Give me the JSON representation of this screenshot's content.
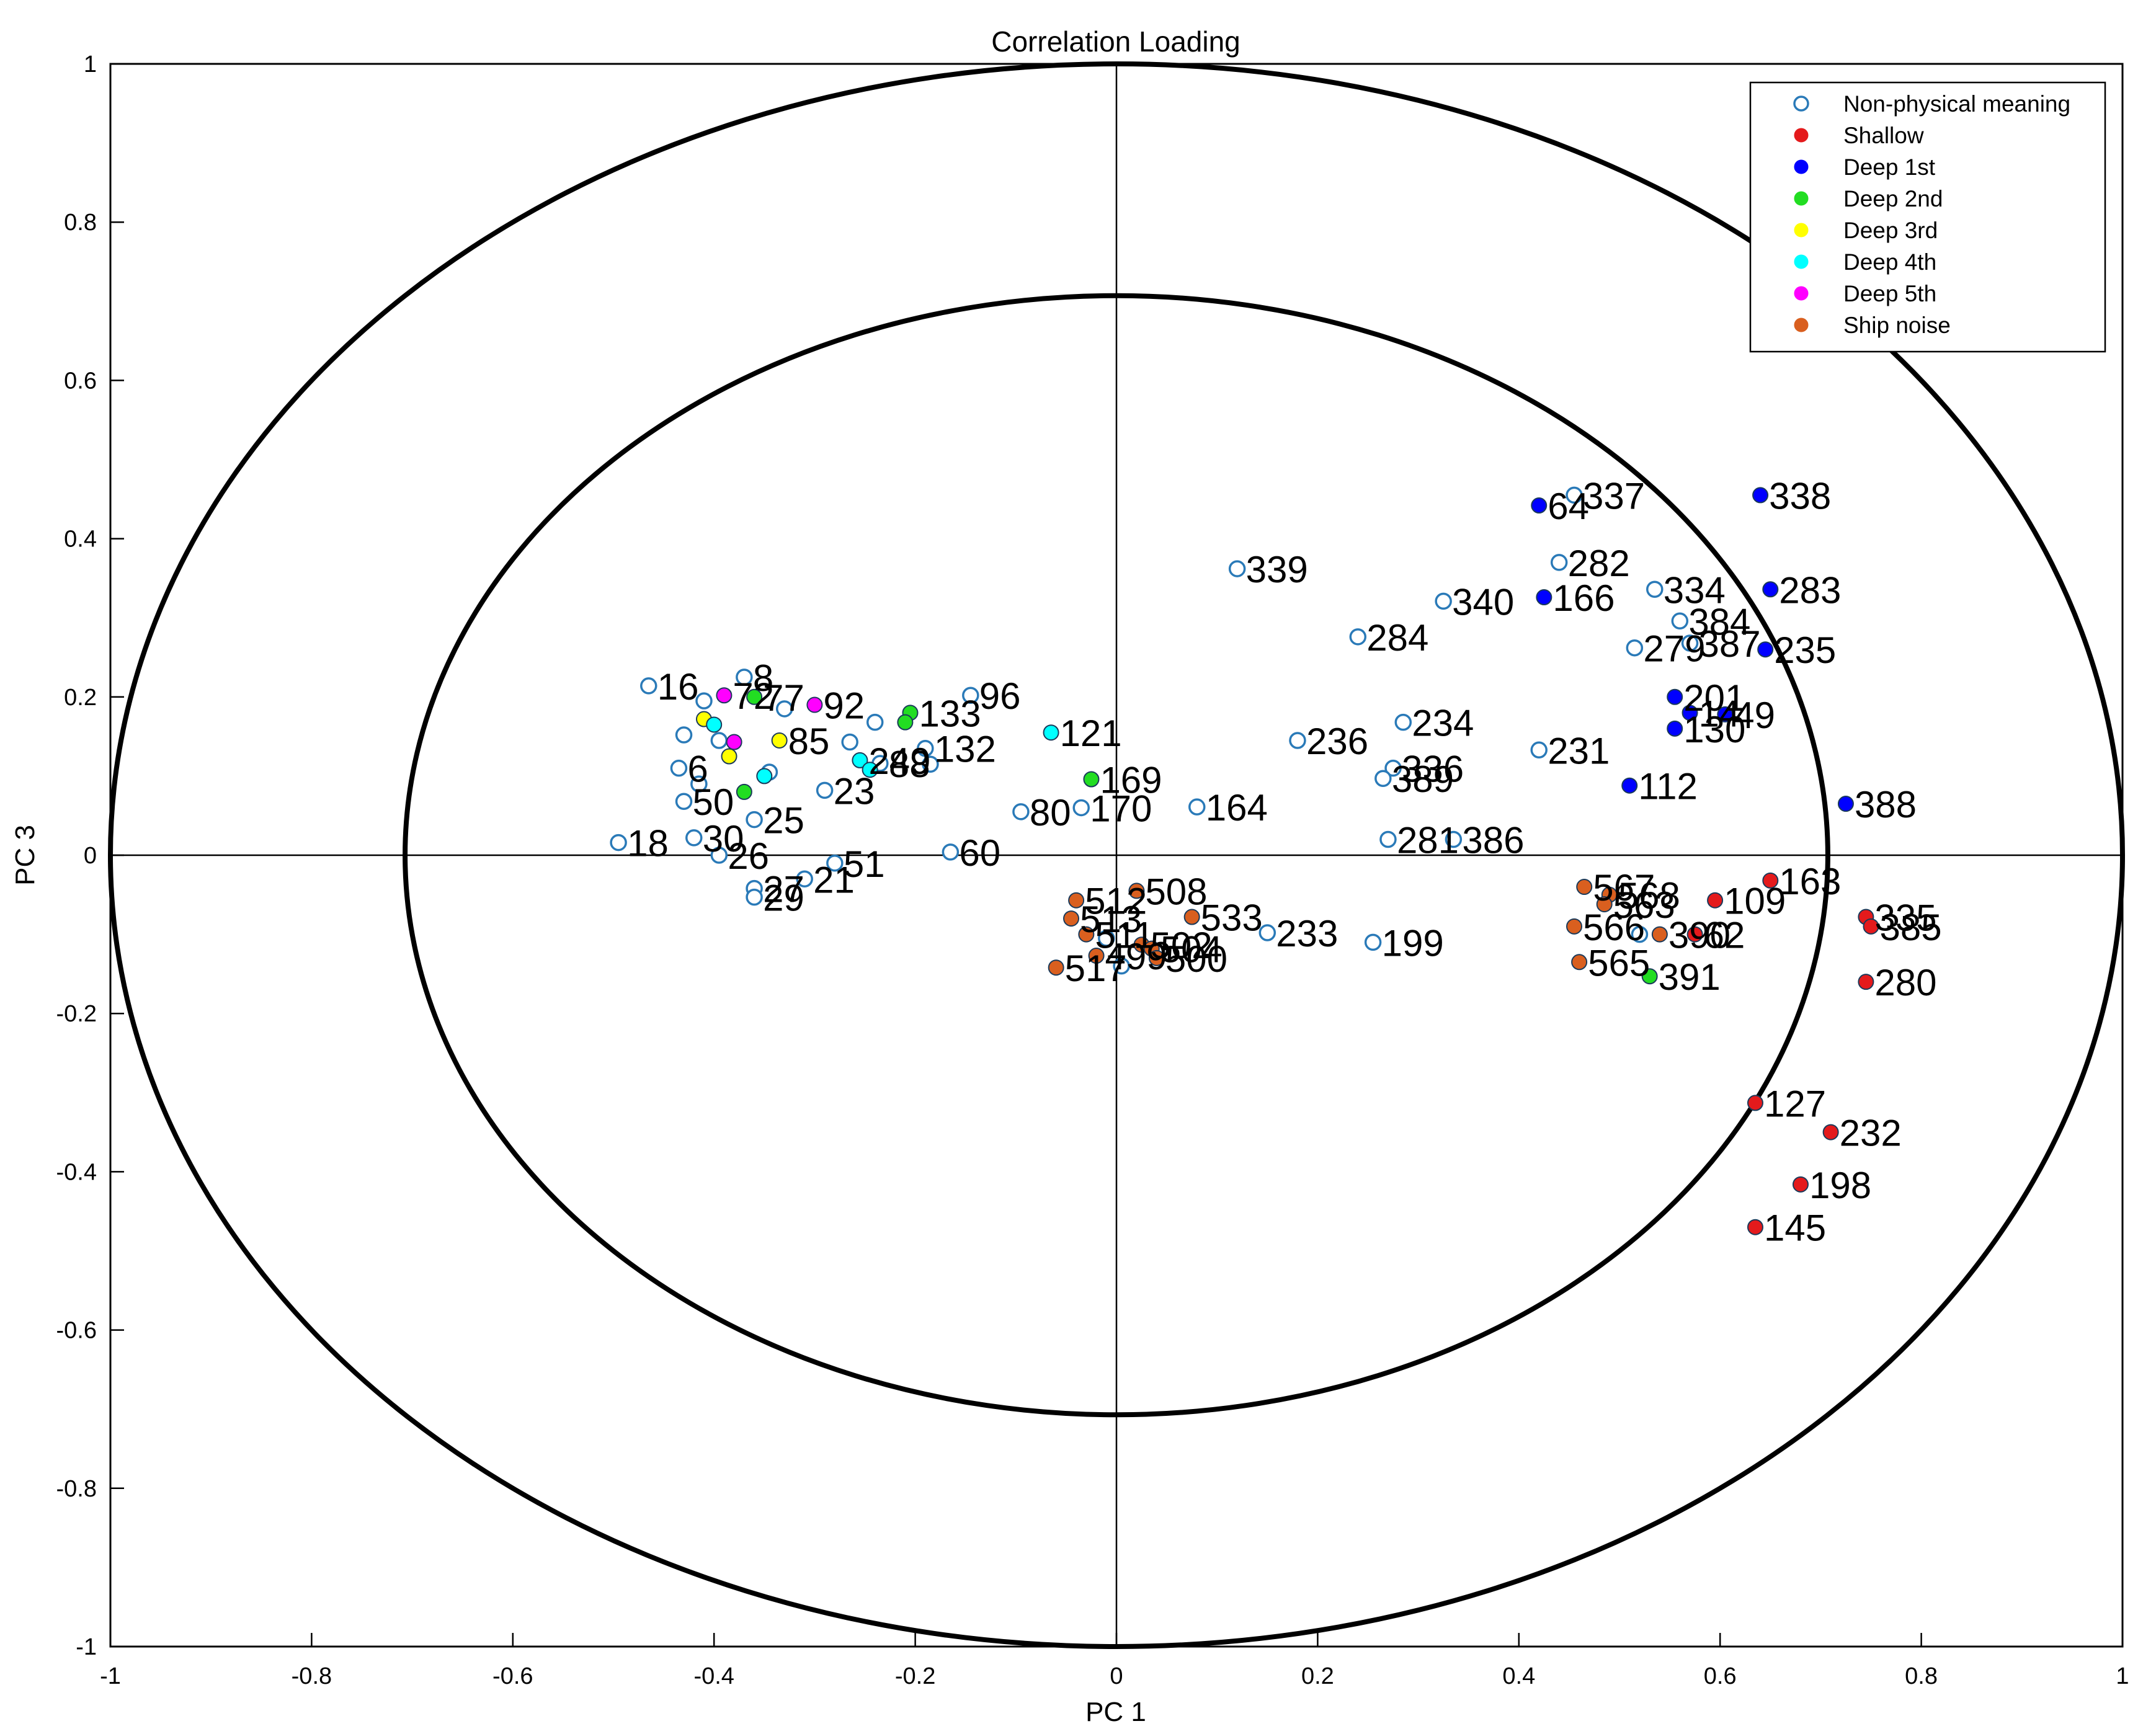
{
  "chart_data": {
    "type": "scatter",
    "title": "Correlation Loading",
    "xlabel": "PC 1",
    "ylabel": "PC 3",
    "xlim": [
      -1,
      1
    ],
    "ylim": [
      -1,
      1
    ],
    "x_ticks": [
      "-1",
      "-0.8",
      "-0.6",
      "-0.4",
      "-0.2",
      "0",
      "0.2",
      "0.4",
      "0.6",
      "0.8",
      "1"
    ],
    "y_ticks": [
      "1",
      "0.8",
      "0.6",
      "0.4",
      "0.2",
      "0",
      "-0.2",
      "-0.4",
      "-0.6",
      "-0.8",
      "-1"
    ],
    "x_tick_values": [
      -1,
      -0.8,
      -0.6,
      -0.4,
      -0.2,
      0,
      0.2,
      0.4,
      0.6,
      0.8,
      1
    ],
    "y_tick_values": [
      1,
      0.8,
      0.6,
      0.4,
      0.2,
      0,
      -0.2,
      -0.4,
      -0.6,
      -0.8,
      -1
    ],
    "circles": [
      {
        "name": "outer-circle",
        "radius": 1.0
      },
      {
        "name": "inner-circle",
        "radius": 0.7071
      }
    ],
    "legend": {
      "position": "top-right",
      "entries": [
        {
          "label": "Non-physical meaning",
          "color": "#2a7ab8",
          "marker": "open"
        },
        {
          "label": "Shallow",
          "color": "#e41a1c",
          "marker": "filled"
        },
        {
          "label": "Deep 1st",
          "color": "#0000ff",
          "marker": "filled"
        },
        {
          "label": "Deep 2nd",
          "color": "#22dd22",
          "marker": "filled"
        },
        {
          "label": "Deep 3rd",
          "color": "#ffff00",
          "marker": "filled"
        },
        {
          "label": "Deep 4th",
          "color": "#00ffff",
          "marker": "filled"
        },
        {
          "label": "Deep 5th",
          "color": "#ff00ff",
          "marker": "filled"
        },
        {
          "label": "Ship noise",
          "color": "#d95f1f",
          "marker": "filled"
        }
      ]
    },
    "series": [
      {
        "name": "Non-physical meaning",
        "points": [
          {
            "x": 0.455,
            "y": 0.455,
            "label": "337"
          },
          {
            "x": 0.12,
            "y": 0.362,
            "label": "339"
          },
          {
            "x": 0.44,
            "y": 0.37,
            "label": "282"
          },
          {
            "x": 0.535,
            "y": 0.336,
            "label": "334"
          },
          {
            "x": 0.325,
            "y": 0.321,
            "label": "340"
          },
          {
            "x": 0.56,
            "y": 0.296,
            "label": "384"
          },
          {
            "x": 0.24,
            "y": 0.276,
            "label": "284"
          },
          {
            "x": 0.515,
            "y": 0.262,
            "label": "279"
          },
          {
            "x": 0.57,
            "y": 0.268,
            "label": "387"
          },
          {
            "x": 0.285,
            "y": 0.168,
            "label": "234"
          },
          {
            "x": 0.18,
            "y": 0.145,
            "label": "236"
          },
          {
            "x": 0.42,
            "y": 0.133,
            "label": "231"
          },
          {
            "x": 0.275,
            "y": 0.11,
            "label": "336"
          },
          {
            "x": 0.265,
            "y": 0.097,
            "label": "389"
          },
          {
            "x": 0.08,
            "y": 0.061,
            "label": "164"
          },
          {
            "x": -0.035,
            "y": 0.06,
            "label": "170"
          },
          {
            "x": -0.095,
            "y": 0.055,
            "label": "80"
          },
          {
            "x": 0.27,
            "y": 0.02,
            "label": "281"
          },
          {
            "x": 0.335,
            "y": 0.02,
            "label": "386"
          },
          {
            "x": -0.165,
            "y": 0.004,
            "label": "60"
          },
          {
            "x": 0.15,
            "y": -0.098,
            "label": "233"
          },
          {
            "x": 0.255,
            "y": -0.11,
            "label": "199"
          },
          {
            "x": -0.145,
            "y": 0.202,
            "label": "96"
          },
          {
            "x": -0.19,
            "y": 0.135,
            "label": "132"
          },
          {
            "x": -0.29,
            "y": 0.082,
            "label": "23"
          },
          {
            "x": -0.37,
            "y": 0.225,
            "label": "8"
          },
          {
            "x": -0.465,
            "y": 0.214,
            "label": "16"
          },
          {
            "x": -0.495,
            "y": 0.016,
            "label": "18"
          },
          {
            "x": -0.42,
            "y": 0.022,
            "label": "30"
          },
          {
            "x": -0.36,
            "y": 0.045,
            "label": "25"
          },
          {
            "x": -0.395,
            "y": 0.0,
            "label": "26"
          },
          {
            "x": -0.28,
            "y": -0.01,
            "label": "51"
          },
          {
            "x": -0.31,
            "y": -0.03,
            "label": "21"
          },
          {
            "x": -0.36,
            "y": -0.042,
            "label": "27"
          },
          {
            "x": -0.36,
            "y": -0.053,
            "label": "29"
          },
          {
            "x": -0.43,
            "y": 0.068,
            "label": "50"
          },
          {
            "x": -0.435,
            "y": 0.11,
            "label": "6"
          },
          {
            "x": -0.41,
            "y": 0.195,
            "label": ""
          },
          {
            "x": -0.43,
            "y": 0.152,
            "label": ""
          },
          {
            "x": -0.395,
            "y": 0.145,
            "label": ""
          },
          {
            "x": -0.415,
            "y": 0.09,
            "label": ""
          },
          {
            "x": -0.33,
            "y": 0.185,
            "label": ""
          },
          {
            "x": -0.24,
            "y": 0.168,
            "label": ""
          },
          {
            "x": -0.265,
            "y": 0.143,
            "label": ""
          },
          {
            "x": -0.235,
            "y": 0.116,
            "label": "88"
          },
          {
            "x": -0.185,
            "y": 0.115,
            "label": ""
          },
          {
            "x": -0.345,
            "y": 0.105,
            "label": ""
          },
          {
            "x": -0.01,
            "y": -0.105,
            "label": ""
          },
          {
            "x": 0.005,
            "y": -0.14,
            "label": ""
          },
          {
            "x": 0.52,
            "y": -0.1,
            "label": ""
          }
        ]
      },
      {
        "name": "Shallow",
        "points": [
          {
            "x": 0.65,
            "y": -0.032,
            "label": "163"
          },
          {
            "x": 0.595,
            "y": -0.057,
            "label": "109"
          },
          {
            "x": 0.745,
            "y": -0.078,
            "label": "335"
          },
          {
            "x": 0.75,
            "y": -0.09,
            "label": "385"
          },
          {
            "x": 0.745,
            "y": -0.16,
            "label": "280"
          },
          {
            "x": 0.635,
            "y": -0.313,
            "label": "127"
          },
          {
            "x": 0.71,
            "y": -0.35,
            "label": "232"
          },
          {
            "x": 0.68,
            "y": -0.416,
            "label": "198"
          },
          {
            "x": 0.635,
            "y": -0.47,
            "label": "145"
          },
          {
            "x": 0.575,
            "y": -0.1,
            "label": "62"
          }
        ]
      },
      {
        "name": "Deep 1st",
        "points": [
          {
            "x": 0.64,
            "y": 0.455,
            "label": "338"
          },
          {
            "x": 0.42,
            "y": 0.442,
            "label": "64"
          },
          {
            "x": 0.65,
            "y": 0.336,
            "label": "283"
          },
          {
            "x": 0.425,
            "y": 0.326,
            "label": "166"
          },
          {
            "x": 0.645,
            "y": 0.26,
            "label": "235"
          },
          {
            "x": 0.555,
            "y": 0.2,
            "label": "201"
          },
          {
            "x": 0.57,
            "y": 0.18,
            "label": "14"
          },
          {
            "x": 0.605,
            "y": 0.178,
            "label": "49"
          },
          {
            "x": 0.555,
            "y": 0.16,
            "label": "130"
          },
          {
            "x": 0.51,
            "y": 0.088,
            "label": "112"
          },
          {
            "x": 0.725,
            "y": 0.065,
            "label": "388"
          }
        ]
      },
      {
        "name": "Deep 2nd",
        "points": [
          {
            "x": -0.025,
            "y": 0.096,
            "label": "169"
          },
          {
            "x": 0.53,
            "y": -0.153,
            "label": "391"
          },
          {
            "x": -0.36,
            "y": 0.2,
            "label": "77"
          },
          {
            "x": -0.205,
            "y": 0.18,
            "label": "133"
          },
          {
            "x": -0.21,
            "y": 0.168,
            "label": ""
          },
          {
            "x": -0.37,
            "y": 0.08,
            "label": ""
          }
        ]
      },
      {
        "name": "Deep 3rd",
        "points": [
          {
            "x": -0.41,
            "y": 0.172,
            "label": ""
          },
          {
            "x": -0.335,
            "y": 0.145,
            "label": "85"
          },
          {
            "x": -0.385,
            "y": 0.125,
            "label": ""
          }
        ]
      },
      {
        "name": "Deep 4th",
        "points": [
          {
            "x": -0.065,
            "y": 0.155,
            "label": "121"
          },
          {
            "x": -0.255,
            "y": 0.12,
            "label": "249"
          },
          {
            "x": -0.245,
            "y": 0.108,
            "label": ""
          },
          {
            "x": -0.35,
            "y": 0.1,
            "label": ""
          },
          {
            "x": -0.4,
            "y": 0.165,
            "label": ""
          }
        ]
      },
      {
        "name": "Deep 5th",
        "points": [
          {
            "x": -0.39,
            "y": 0.202,
            "label": "72"
          },
          {
            "x": -0.3,
            "y": 0.19,
            "label": "92"
          },
          {
            "x": -0.38,
            "y": 0.143,
            "label": ""
          }
        ]
      },
      {
        "name": "Ship noise",
        "points": [
          {
            "x": 0.02,
            "y": -0.045,
            "label": "508"
          },
          {
            "x": -0.04,
            "y": -0.057,
            "label": "512"
          },
          {
            "x": 0.075,
            "y": -0.078,
            "label": "533"
          },
          {
            "x": -0.045,
            "y": -0.08,
            "label": "513"
          },
          {
            "x": -0.03,
            "y": -0.1,
            "label": "511"
          },
          {
            "x": 0.025,
            "y": -0.113,
            "label": "502"
          },
          {
            "x": 0.035,
            "y": -0.118,
            "label": "504"
          },
          {
            "x": -0.02,
            "y": -0.127,
            "label": "499"
          },
          {
            "x": 0.04,
            "y": -0.13,
            "label": "500"
          },
          {
            "x": -0.06,
            "y": -0.142,
            "label": "517"
          },
          {
            "x": 0.465,
            "y": -0.04,
            "label": "567"
          },
          {
            "x": 0.49,
            "y": -0.05,
            "label": "568"
          },
          {
            "x": 0.485,
            "y": -0.062,
            "label": "563"
          },
          {
            "x": 0.455,
            "y": -0.09,
            "label": "566"
          },
          {
            "x": 0.54,
            "y": -0.1,
            "label": "390"
          },
          {
            "x": 0.46,
            "y": -0.135,
            "label": "565"
          }
        ]
      }
    ]
  }
}
